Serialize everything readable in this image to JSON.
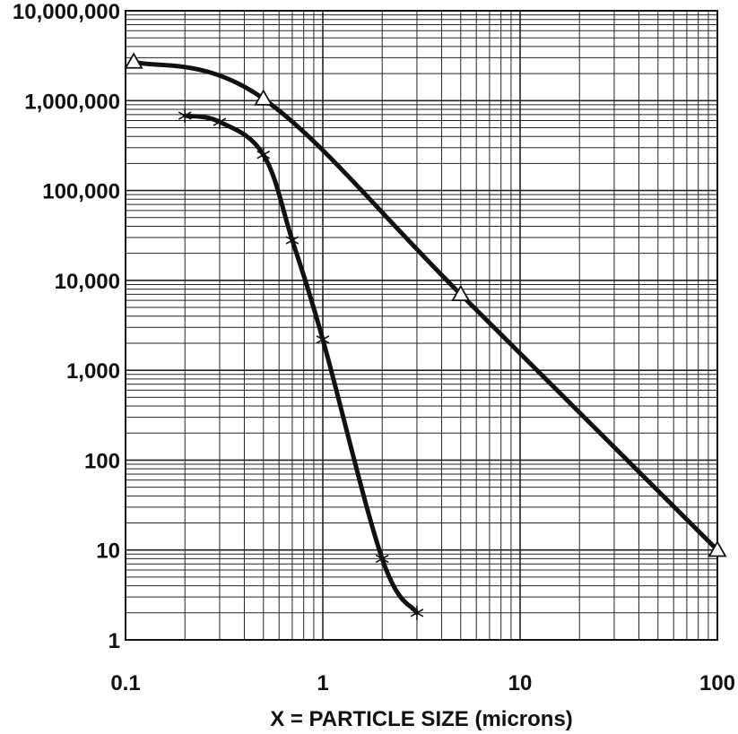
{
  "chart_data": {
    "type": "line",
    "xscale": "log",
    "yscale": "log",
    "xlim": [
      0.1,
      100
    ],
    "ylim": [
      1,
      10000000
    ],
    "grid": true,
    "xlabel": "X = PARTICLE SIZE (microns)",
    "ylabel": "",
    "title": "",
    "x_tick_labels": [
      {
        "value": 0.1,
        "label": "0.1"
      },
      {
        "value": 1,
        "label": "1"
      },
      {
        "value": 10,
        "label": "10"
      },
      {
        "value": 100,
        "label": "100"
      }
    ],
    "y_tick_labels": [
      {
        "value": 10000000,
        "label": "10,000,000"
      },
      {
        "value": 1000000,
        "label": "1,000,000"
      },
      {
        "value": 100000,
        "label": "100,000"
      },
      {
        "value": 10000,
        "label": "10,000"
      },
      {
        "value": 1000,
        "label": "1,000"
      },
      {
        "value": 100,
        "label": "100"
      },
      {
        "value": 10,
        "label": "10"
      },
      {
        "value": 1,
        "label": "1"
      }
    ],
    "series": [
      {
        "marker": "triangle",
        "color": "#111111",
        "points": [
          {
            "x": 0.11,
            "y": 2700000
          },
          {
            "x": 0.5,
            "y": 1050000
          },
          {
            "x": 5,
            "y": 7000
          },
          {
            "x": 100,
            "y": 10
          }
        ]
      },
      {
        "marker": "asterisk",
        "color": "#111111",
        "points": [
          {
            "x": 0.2,
            "y": 680000
          },
          {
            "x": 0.3,
            "y": 580000
          },
          {
            "x": 0.5,
            "y": 250000
          },
          {
            "x": 0.7,
            "y": 28000
          },
          {
            "x": 1,
            "y": 2200
          },
          {
            "x": 2,
            "y": 8
          },
          {
            "x": 3,
            "y": 2
          }
        ]
      }
    ]
  }
}
